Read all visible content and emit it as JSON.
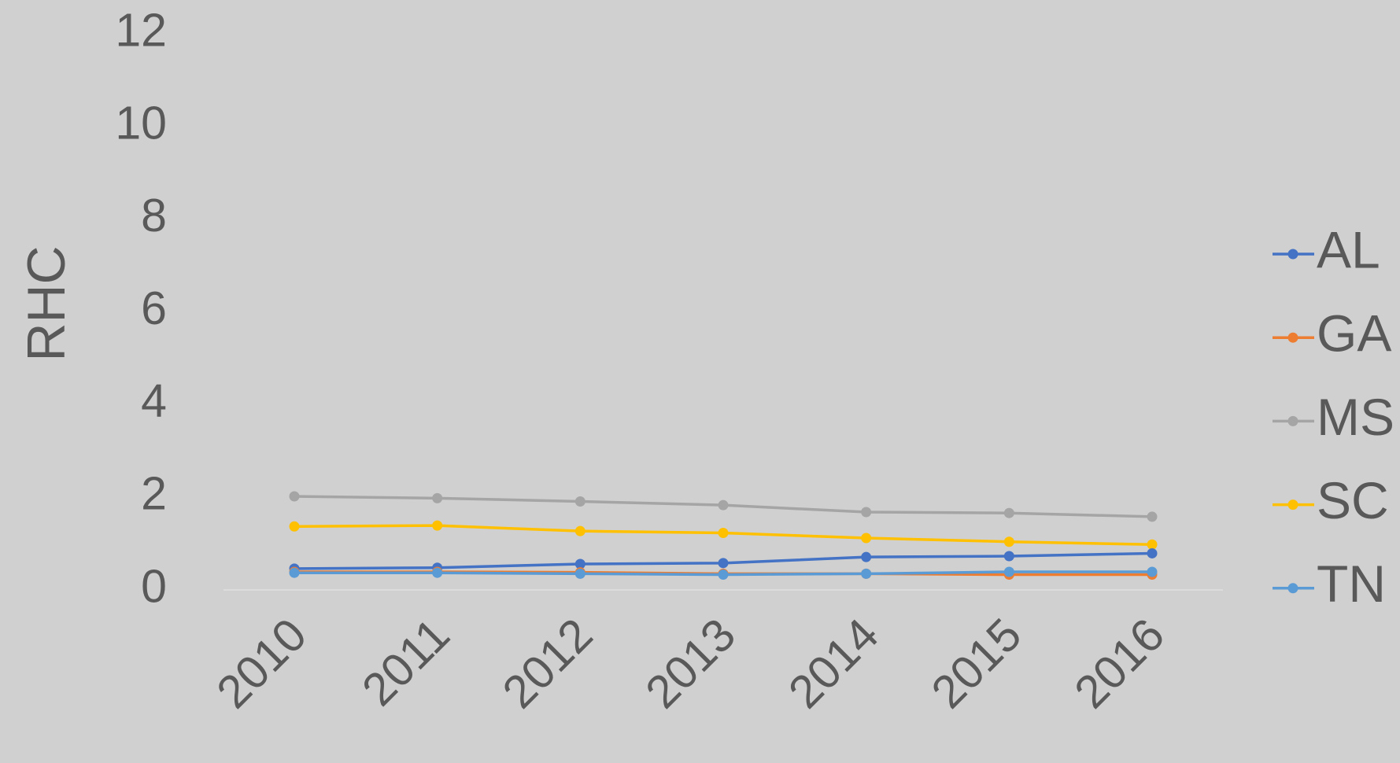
{
  "chart_data": {
    "type": "line",
    "y_label": "RHC",
    "x": [
      "2010",
      "2011",
      "2012",
      "2013",
      "2014",
      "2015",
      "2016"
    ],
    "series": [
      {
        "name": "AL",
        "color": "#4472c4",
        "values": [
          0.46,
          0.48,
          0.56,
          0.58,
          0.71,
          0.73,
          0.79
        ]
      },
      {
        "name": "GA",
        "color": "#ed7d31",
        "values": [
          0.39,
          0.39,
          0.38,
          0.35,
          0.35,
          0.33,
          0.33
        ]
      },
      {
        "name": "MS",
        "color": "#a5a5a5",
        "values": [
          2.02,
          1.98,
          1.91,
          1.83,
          1.68,
          1.66,
          1.58
        ]
      },
      {
        "name": "SC",
        "color": "#ffc000",
        "values": [
          1.37,
          1.39,
          1.27,
          1.23,
          1.12,
          1.04,
          0.98
        ]
      },
      {
        "name": "TN",
        "color": "#5b9bd5",
        "values": [
          0.37,
          0.37,
          0.35,
          0.33,
          0.35,
          0.39,
          0.39
        ]
      }
    ],
    "ylim": [
      0,
      12
    ],
    "yticks": [
      0,
      2,
      4,
      6,
      8,
      10,
      12
    ],
    "grid": false,
    "legend": "right"
  }
}
